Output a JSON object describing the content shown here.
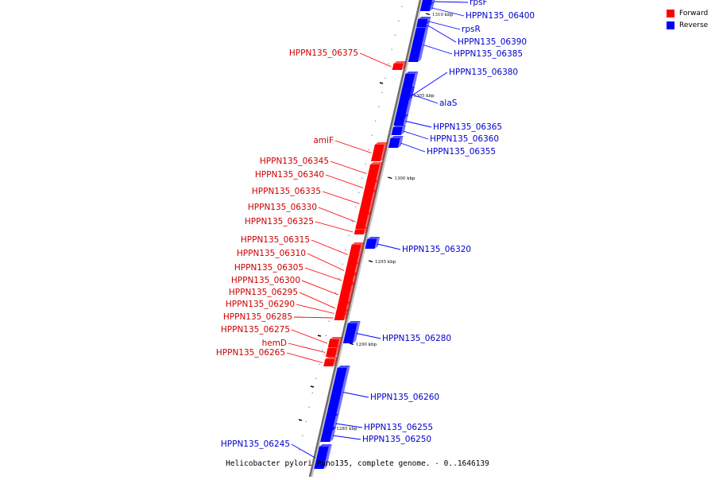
{
  "legend": {
    "items": [
      {
        "label": "Forward",
        "color": "#ff0000"
      },
      {
        "label": "Reverse",
        "color": "#0000ff"
      }
    ]
  },
  "caption": "Helicobacter pylori Puno135, complete genome. - 0..1646139",
  "axis_ticks": [
    "1310 kbp",
    "1305 kbp",
    "1300 kbp",
    "1295 kbp",
    "1290 kbp",
    "1285 kbp"
  ],
  "genes": [
    {
      "name": "rpsF",
      "strand": "reverse"
    },
    {
      "name": "HPPN135_06400",
      "strand": "reverse"
    },
    {
      "name": "rpsR",
      "strand": "reverse"
    },
    {
      "name": "HPPN135_06390",
      "strand": "reverse"
    },
    {
      "name": "HPPN135_06385",
      "strand": "reverse"
    },
    {
      "name": "HPPN135_06375",
      "strand": "forward"
    },
    {
      "name": "HPPN135_06380",
      "strand": "reverse"
    },
    {
      "name": "alaS",
      "strand": "reverse"
    },
    {
      "name": "HPPN135_06365",
      "strand": "reverse"
    },
    {
      "name": "HPPN135_06360",
      "strand": "reverse"
    },
    {
      "name": "HPPN135_06355",
      "strand": "reverse"
    },
    {
      "name": "amiF",
      "strand": "forward"
    },
    {
      "name": "HPPN135_06345",
      "strand": "forward"
    },
    {
      "name": "HPPN135_06340",
      "strand": "forward"
    },
    {
      "name": "HPPN135_06335",
      "strand": "forward"
    },
    {
      "name": "HPPN135_06330",
      "strand": "forward"
    },
    {
      "name": "HPPN135_06325",
      "strand": "forward"
    },
    {
      "name": "HPPN135_06320",
      "strand": "reverse"
    },
    {
      "name": "HPPN135_06315",
      "strand": "forward"
    },
    {
      "name": "HPPN135_06310",
      "strand": "forward"
    },
    {
      "name": "HPPN135_06305",
      "strand": "forward"
    },
    {
      "name": "HPPN135_06300",
      "strand": "forward"
    },
    {
      "name": "HPPN135_06295",
      "strand": "forward"
    },
    {
      "name": "HPPN135_06290",
      "strand": "forward"
    },
    {
      "name": "HPPN135_06285",
      "strand": "forward"
    },
    {
      "name": "HPPN135_06280",
      "strand": "reverse"
    },
    {
      "name": "HPPN135_06275",
      "strand": "forward"
    },
    {
      "name": "hemD",
      "strand": "forward"
    },
    {
      "name": "HPPN135_06265",
      "strand": "forward"
    },
    {
      "name": "HPPN135_06260",
      "strand": "reverse"
    },
    {
      "name": "HPPN135_06255",
      "strand": "reverse"
    },
    {
      "name": "HPPN135_06250",
      "strand": "reverse"
    },
    {
      "name": "HPPN135_06245",
      "strand": "reverse"
    }
  ]
}
